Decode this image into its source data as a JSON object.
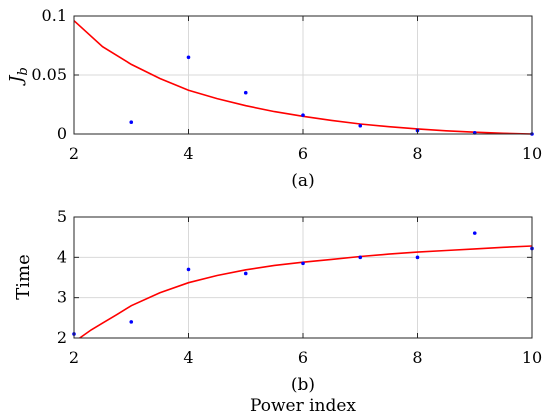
{
  "colors": {
    "points": "#0000ff",
    "fit": "#ff0000"
  },
  "chart_data": [
    {
      "type": "scatter",
      "panel_label": "(a)",
      "xlabel": "",
      "ylabel": "J",
      "ylabel_subscript": "b",
      "xlim": [
        2,
        10
      ],
      "ylim": [
        0,
        0.1
      ],
      "xticks": [
        "2",
        "4",
        "6",
        "8",
        "10"
      ],
      "yticks": [
        "0",
        "0.05",
        "0.1"
      ],
      "grid": true,
      "points": {
        "x": [
          3,
          4,
          5,
          6,
          7,
          8,
          9,
          10
        ],
        "y": [
          0.01,
          0.065,
          0.035,
          0.016,
          0.007,
          0.003,
          0.001,
          0.0
        ]
      },
      "fit": {
        "x": [
          2,
          2.5,
          3,
          3.5,
          4,
          4.5,
          5,
          5.5,
          6,
          6.5,
          7,
          7.5,
          8,
          8.5,
          9,
          9.5,
          10
        ],
        "y": [
          0.096,
          0.074,
          0.059,
          0.047,
          0.037,
          0.03,
          0.024,
          0.019,
          0.015,
          0.0115,
          0.0085,
          0.0062,
          0.0043,
          0.0027,
          0.0015,
          0.0006,
          0.0
        ]
      }
    },
    {
      "type": "scatter",
      "panel_label": "(b)",
      "xlabel": "Power index",
      "ylabel": "Time",
      "xlim": [
        2,
        10
      ],
      "ylim": [
        2,
        5
      ],
      "xticks": [
        "2",
        "4",
        "6",
        "8",
        "10"
      ],
      "yticks": [
        "2",
        "3",
        "4",
        "5"
      ],
      "grid": true,
      "points": {
        "x": [
          2,
          3,
          4,
          5,
          6,
          7,
          8,
          9,
          10
        ],
        "y": [
          2.1,
          2.4,
          3.7,
          3.6,
          3.85,
          4.0,
          4.0,
          4.6,
          4.22
        ]
      },
      "fit": {
        "x": [
          2.1,
          2.3,
          2.5,
          2.75,
          3,
          3.5,
          4,
          4.5,
          5,
          5.5,
          6,
          6.5,
          7,
          7.5,
          8,
          8.5,
          9,
          9.5,
          10
        ],
        "y": [
          2.0,
          2.2,
          2.37,
          2.58,
          2.8,
          3.12,
          3.37,
          3.55,
          3.69,
          3.8,
          3.88,
          3.95,
          4.02,
          4.08,
          4.13,
          4.17,
          4.21,
          4.25,
          4.28
        ]
      }
    }
  ]
}
